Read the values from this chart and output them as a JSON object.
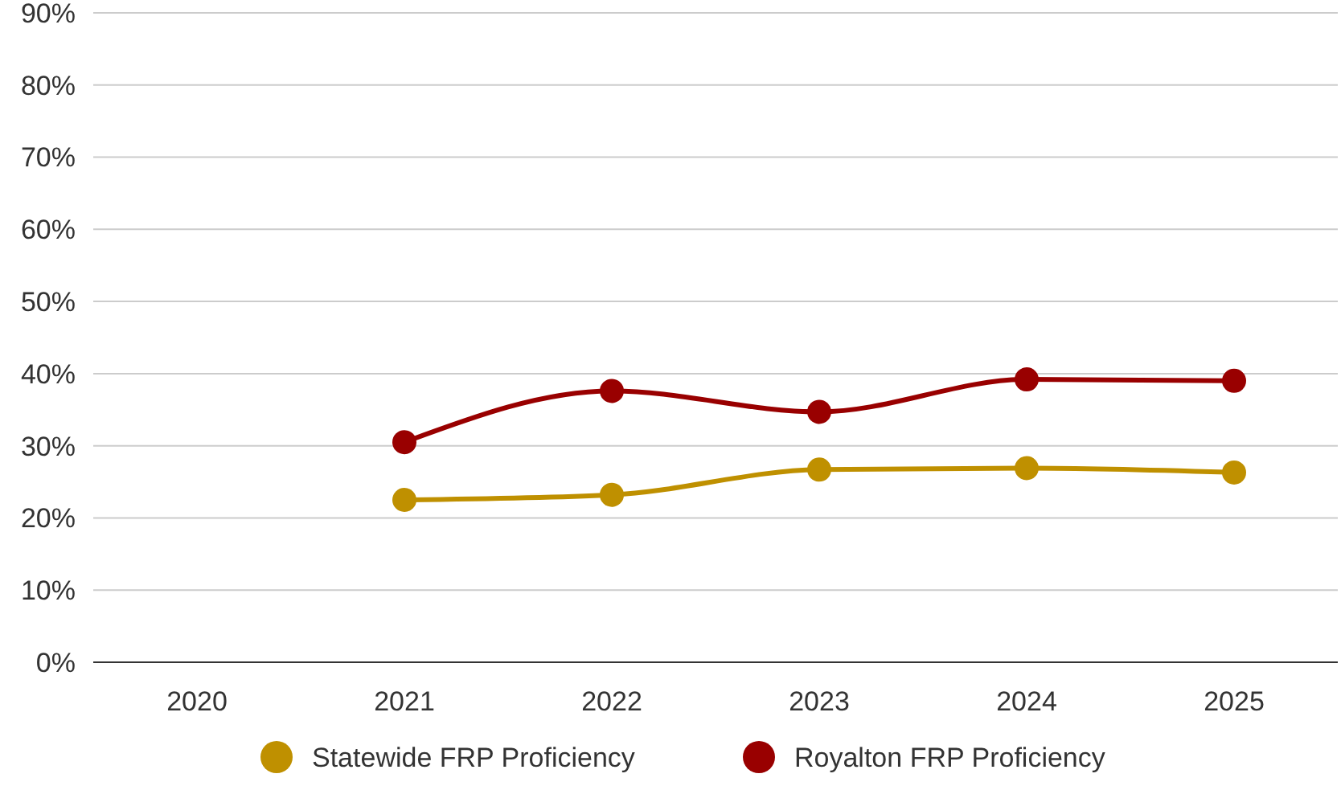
{
  "chart_data": {
    "type": "line",
    "categories": [
      "2020",
      "2021",
      "2022",
      "2023",
      "2024",
      "2025"
    ],
    "series": [
      {
        "name": "Statewide FRP Proficiency",
        "color": "#bf9000",
        "values": [
          null,
          22.5,
          23.2,
          26.7,
          26.9,
          26.3
        ]
      },
      {
        "name": "Royalton FRP Proficiency",
        "color": "#990000",
        "values": [
          null,
          30.5,
          37.6,
          34.7,
          39.2,
          39.0
        ]
      }
    ],
    "ylim": [
      0,
      90
    ],
    "yticks": [
      {
        "value": 0,
        "label": "0%"
      },
      {
        "value": 10,
        "label": "10%"
      },
      {
        "value": 20,
        "label": "20%"
      },
      {
        "value": 30,
        "label": "30%"
      },
      {
        "value": 40,
        "label": "40%"
      },
      {
        "value": 50,
        "label": "50%"
      },
      {
        "value": 60,
        "label": "60%"
      },
      {
        "value": 70,
        "label": "70%"
      },
      {
        "value": 80,
        "label": "80%"
      },
      {
        "value": 90,
        "label": "90%"
      }
    ],
    "grid": "y",
    "legend": "bottom",
    "marker": "circle",
    "line_style": "solid"
  }
}
